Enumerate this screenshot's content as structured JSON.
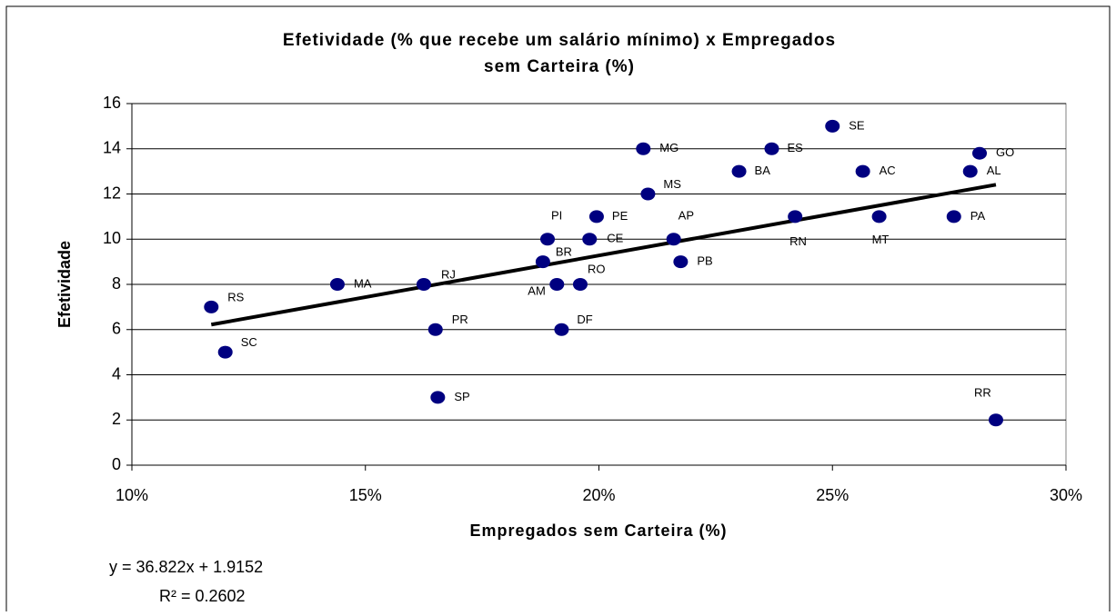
{
  "chart_data": {
    "type": "scatter",
    "title": [
      "Efetividade (% que recebe um salário mínimo) x Empregados",
      "sem Carteira (%)"
    ],
    "xlabel": "Empregados sem Carteira (%)",
    "ylabel": "Efetividade",
    "xlim": [
      10,
      30
    ],
    "xticks": [
      {
        "value": 10,
        "label": "10%"
      },
      {
        "value": 15,
        "label": "15%"
      },
      {
        "value": 20,
        "label": "20%"
      },
      {
        "value": 25,
        "label": "25%"
      },
      {
        "value": 30,
        "label": "30%"
      }
    ],
    "ylim": [
      0,
      16
    ],
    "yticks": [
      0,
      2,
      4,
      6,
      8,
      10,
      12,
      14,
      16
    ],
    "grid": true,
    "series": [
      {
        "color": "#000080",
        "labels": [
          "RS",
          "SC",
          "MA",
          "RJ",
          "PR",
          "SP",
          "BR",
          "PI",
          "AM",
          "DF",
          "RO",
          "CE",
          "PE",
          "MG",
          "MS",
          "AP",
          "PB",
          "BA",
          "ES",
          "RN",
          "SE",
          "AC",
          "MT",
          "PA",
          "AL",
          "GO",
          "RR"
        ],
        "x": [
          11.7,
          12.0,
          14.4,
          16.25,
          16.5,
          16.55,
          18.8,
          18.9,
          19.1,
          19.2,
          19.6,
          19.8,
          19.95,
          20.95,
          21.05,
          21.6,
          21.75,
          23.0,
          23.7,
          24.2,
          25.0,
          25.65,
          26.0,
          27.6,
          27.95,
          28.15,
          28.5
        ],
        "values": [
          7,
          5,
          8,
          8,
          6,
          3,
          9,
          10,
          8,
          6,
          8,
          10,
          11,
          14,
          12,
          10,
          9,
          13,
          14,
          11,
          15,
          13,
          11,
          11,
          13,
          13.8,
          2
        ]
      }
    ],
    "trendline": {
      "color": "#000000",
      "x": [
        11.7,
        28.5
      ],
      "values": [
        6.22,
        12.41
      ],
      "equation": "y = 36.822x + 1.9152",
      "r2": "R² = 0.2602"
    }
  }
}
